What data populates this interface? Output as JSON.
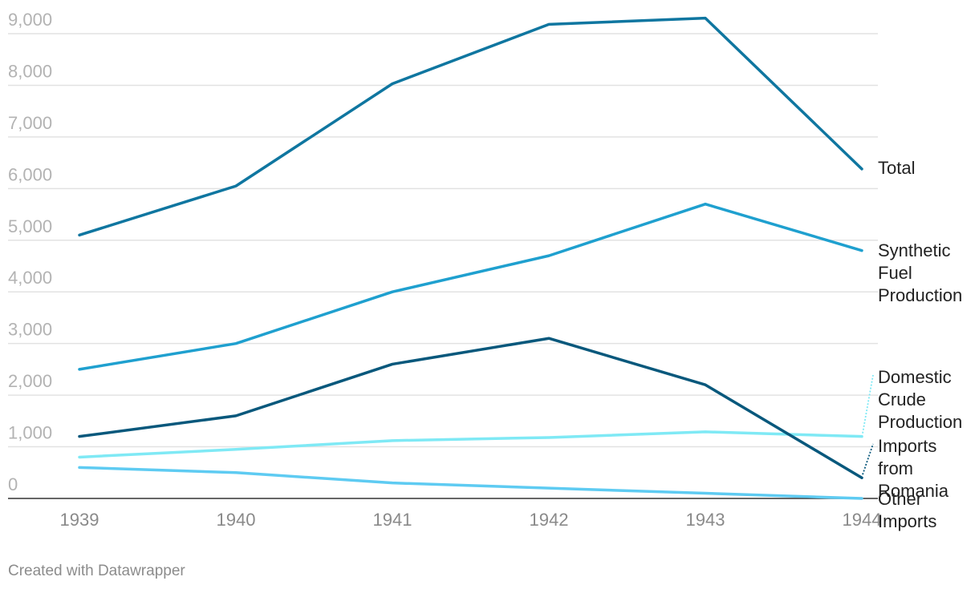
{
  "chart_data": {
    "type": "line",
    "x": [
      "1939",
      "1940",
      "1941",
      "1942",
      "1943",
      "1944"
    ],
    "ylim": [
      0,
      9000
    ],
    "yticks": [
      "0",
      "1,000",
      "2,000",
      "3,000",
      "4,000",
      "5,000",
      "6,000",
      "7,000",
      "8,000",
      "9,000"
    ],
    "ytick_values": [
      0,
      1000,
      2000,
      3000,
      4000,
      5000,
      6000,
      7000,
      8000,
      9000
    ],
    "grid": true,
    "legend": "direct labels at right end of lines",
    "series": [
      {
        "name": "Total",
        "label_lines": [
          "Total"
        ],
        "color": "#0f76a0",
        "values": [
          5100,
          6050,
          8030,
          9180,
          9300,
          6380
        ]
      },
      {
        "name": "Synthetic Fuel Production",
        "label_lines": [
          "Synthetic",
          "Fuel",
          "Production"
        ],
        "color": "#1fa0cf",
        "values": [
          2500,
          3000,
          4000,
          4700,
          5700,
          4800
        ]
      },
      {
        "name": "Domestic Crude Production",
        "label_lines": [
          "Domestic",
          "Crude",
          "Production"
        ],
        "color": "#7fe9f5",
        "values": [
          800,
          950,
          1120,
          1180,
          1290,
          1200
        ]
      },
      {
        "name": "Imports from Romania",
        "label_lines": [
          "Imports",
          "from",
          "Romania"
        ],
        "color": "#08587c",
        "values": [
          1200,
          1600,
          2600,
          3100,
          2200,
          400
        ]
      },
      {
        "name": "Other Imports",
        "label_lines": [
          "Other",
          "Imports"
        ],
        "color": "#5ecbf2",
        "values": [
          600,
          500,
          300,
          200,
          100,
          0
        ]
      }
    ]
  },
  "footer": {
    "credit": "Created with Datawrapper"
  }
}
